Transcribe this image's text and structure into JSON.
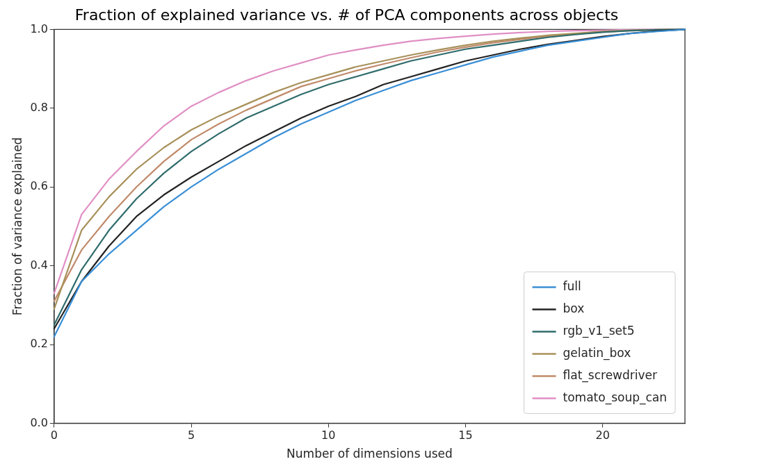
{
  "chart_data": {
    "type": "line",
    "title": "Fraction of explained variance vs. # of PCA components across objects",
    "xlabel": "Number of dimensions used",
    "ylabel": "Fraction of variance explained",
    "x": [
      0,
      1,
      2,
      3,
      4,
      5,
      6,
      7,
      8,
      9,
      10,
      11,
      12,
      13,
      14,
      15,
      16,
      17,
      18,
      19,
      20,
      21,
      22,
      23
    ],
    "xlim": [
      0,
      23
    ],
    "xticks": [
      0,
      5,
      10,
      15,
      20
    ],
    "ylim": [
      0,
      1
    ],
    "yticks": [
      {
        "value": 0,
        "label": "0.0"
      },
      0.2,
      0.4,
      0.6,
      0.8,
      {
        "value": 1,
        "label": "1.0"
      }
    ],
    "grid": false,
    "legend": "bottom right",
    "marker": "none",
    "line_style": "solid",
    "series": [
      {
        "name": "full",
        "color": "#3a8fd6",
        "values": [
          0.22,
          0.36,
          0.43,
          0.49,
          0.55,
          0.6,
          0.645,
          0.685,
          0.725,
          0.76,
          0.79,
          0.82,
          0.845,
          0.87,
          0.89,
          0.91,
          0.93,
          0.945,
          0.96,
          0.97,
          0.98,
          0.99,
          0.995,
          1.0
        ]
      },
      {
        "name": "box",
        "color": "#222222",
        "values": [
          0.24,
          0.36,
          0.45,
          0.525,
          0.58,
          0.625,
          0.665,
          0.705,
          0.74,
          0.775,
          0.805,
          0.83,
          0.86,
          0.88,
          0.9,
          0.92,
          0.935,
          0.95,
          0.962,
          0.972,
          0.982,
          0.99,
          0.996,
          1.0
        ]
      },
      {
        "name": "rgb_v1_set5",
        "color": "#2f6b6b",
        "values": [
          0.25,
          0.39,
          0.49,
          0.57,
          0.635,
          0.69,
          0.735,
          0.775,
          0.805,
          0.835,
          0.86,
          0.88,
          0.9,
          0.92,
          0.935,
          0.95,
          0.96,
          0.97,
          0.98,
          0.987,
          0.993,
          0.997,
          0.999,
          1.0
        ]
      },
      {
        "name": "gelatin_box",
        "color": "#a8905a",
        "values": [
          0.29,
          0.49,
          0.575,
          0.645,
          0.7,
          0.745,
          0.78,
          0.81,
          0.84,
          0.865,
          0.885,
          0.905,
          0.92,
          0.935,
          0.948,
          0.96,
          0.97,
          0.978,
          0.985,
          0.99,
          0.995,
          0.998,
          0.999,
          1.0
        ]
      },
      {
        "name": "flat_screwdriver",
        "color": "#c08a6a",
        "values": [
          0.31,
          0.44,
          0.525,
          0.6,
          0.665,
          0.72,
          0.76,
          0.795,
          0.825,
          0.855,
          0.875,
          0.895,
          0.912,
          0.928,
          0.943,
          0.955,
          0.966,
          0.975,
          0.983,
          0.989,
          0.994,
          0.997,
          0.999,
          1.0
        ]
      },
      {
        "name": "tomato_soup_can",
        "color": "#e08fc4",
        "values": [
          0.33,
          0.53,
          0.62,
          0.69,
          0.755,
          0.805,
          0.84,
          0.87,
          0.895,
          0.915,
          0.935,
          0.948,
          0.96,
          0.97,
          0.977,
          0.983,
          0.988,
          0.992,
          0.995,
          0.997,
          0.998,
          0.999,
          1.0,
          1.0
        ]
      }
    ]
  }
}
